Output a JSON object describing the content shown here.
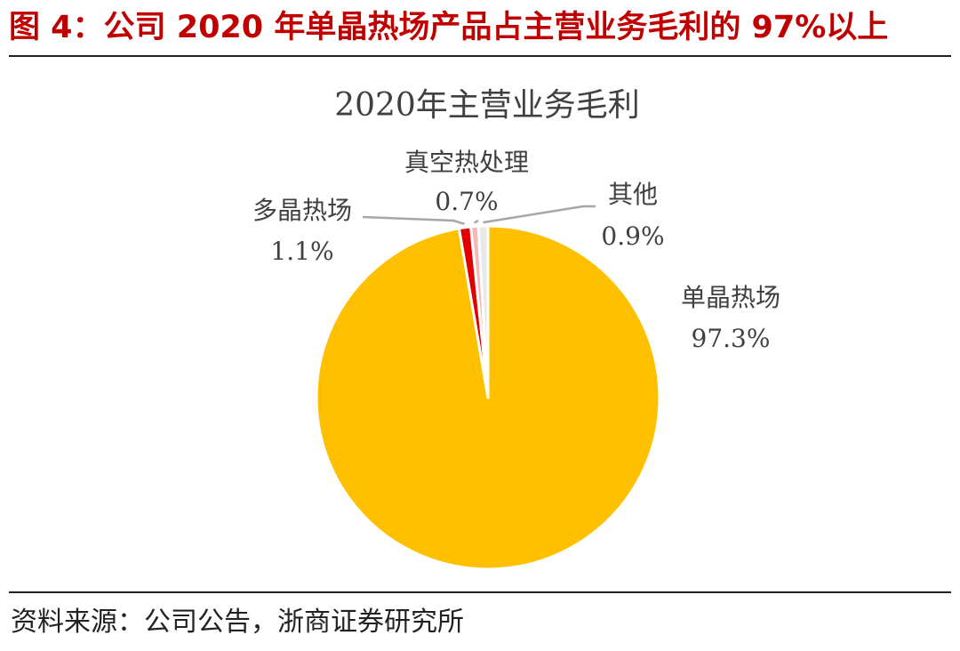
{
  "figure_caption": "图 4：公司 2020 年单晶热场产品占主营业务毛利的 97%以上",
  "source_note": "资料来源：公司公告，浙商证券研究所",
  "chart_data": {
    "type": "pie",
    "title": "2020年主营业务毛利",
    "unit": "%",
    "slices": [
      {
        "name": "单晶热场",
        "value": 97.3,
        "value_label": "97.3%",
        "color": "#ffc000"
      },
      {
        "name": "多晶热场",
        "value": 1.1,
        "value_label": "1.1%",
        "color": "#e00000"
      },
      {
        "name": "真空热处理",
        "value": 0.7,
        "value_label": "0.7%",
        "color": "#f4b8b8"
      },
      {
        "name": "其他",
        "value": 0.9,
        "value_label": "0.9%",
        "color": "#e8e8e8"
      }
    ],
    "leader_line_color": "#a6a6a6"
  }
}
